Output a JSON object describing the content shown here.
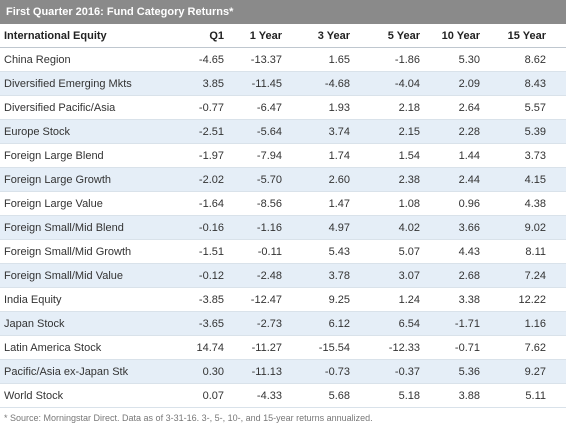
{
  "title": "First Quarter 2016: Fund Category Returns*",
  "table": {
    "headers": [
      "International Equity",
      "Q1",
      "1 Year",
      "3 Year",
      "5 Year",
      "10 Year",
      "15 Year"
    ],
    "rows": [
      [
        "China Region",
        "-4.65",
        "-13.37",
        "1.65",
        "-1.86",
        "5.30",
        "8.62"
      ],
      [
        "Diversified Emerging Mkts",
        "3.85",
        "-11.45",
        "-4.68",
        "-4.04",
        "2.09",
        "8.43"
      ],
      [
        "Diversified Pacific/Asia",
        "-0.77",
        "-6.47",
        "1.93",
        "2.18",
        "2.64",
        "5.57"
      ],
      [
        "Europe Stock",
        "-2.51",
        "-5.64",
        "3.74",
        "2.15",
        "2.28",
        "5.39"
      ],
      [
        "Foreign Large Blend",
        "-1.97",
        "-7.94",
        "1.74",
        "1.54",
        "1.44",
        "3.73"
      ],
      [
        "Foreign Large Growth",
        "-2.02",
        "-5.70",
        "2.60",
        "2.38",
        "2.44",
        "4.15"
      ],
      [
        "Foreign Large Value",
        "-1.64",
        "-8.56",
        "1.47",
        "1.08",
        "0.96",
        "4.38"
      ],
      [
        "Foreign Small/Mid Blend",
        "-0.16",
        "-1.16",
        "4.97",
        "4.02",
        "3.66",
        "9.02"
      ],
      [
        "Foreign Small/Mid Growth",
        "-1.51",
        "-0.11",
        "5.43",
        "5.07",
        "4.43",
        "8.11"
      ],
      [
        "Foreign Small/Mid Value",
        "-0.12",
        "-2.48",
        "3.78",
        "3.07",
        "2.68",
        "7.24"
      ],
      [
        "India Equity",
        "-3.85",
        "-12.47",
        "9.25",
        "1.24",
        "3.38",
        "12.22"
      ],
      [
        "Japan Stock",
        "-3.65",
        "-2.73",
        "6.12",
        "6.54",
        "-1.71",
        "1.16"
      ],
      [
        "Latin America Stock",
        "14.74",
        "-11.27",
        "-15.54",
        "-12.33",
        "-0.71",
        "7.62"
      ],
      [
        "Pacific/Asia ex-Japan Stk",
        "0.30",
        "-11.13",
        "-0.73",
        "-0.37",
        "5.36",
        "9.27"
      ],
      [
        "World Stock",
        "0.07",
        "-4.33",
        "5.68",
        "5.18",
        "3.88",
        "5.11"
      ]
    ]
  },
  "footnote": "* Source: Morningstar Direct. Data as of 3-31-16. 3-, 5-, 10-, and 15-year returns annualized."
}
